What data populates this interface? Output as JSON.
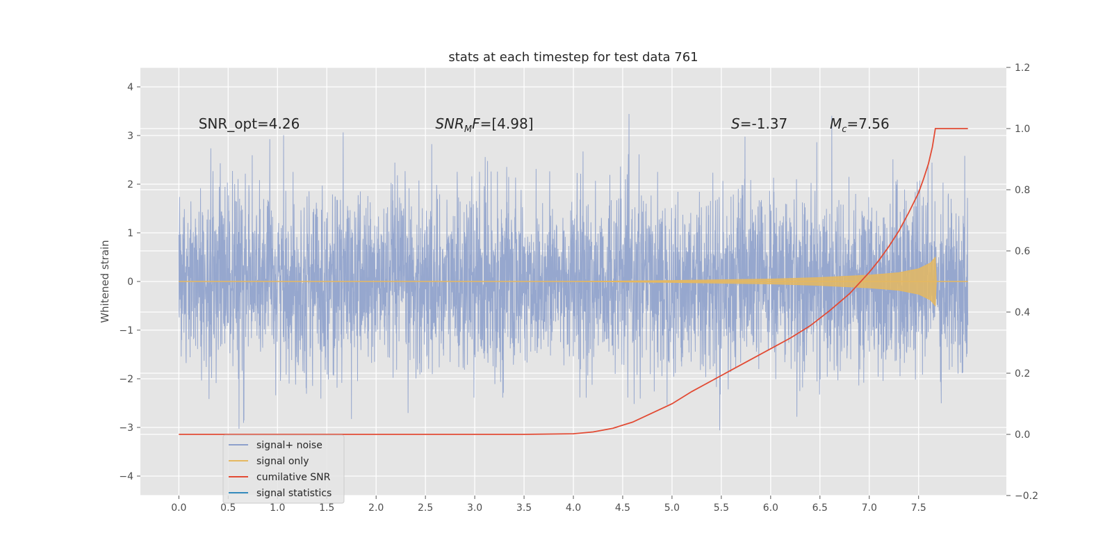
{
  "chart_data": {
    "type": "line",
    "title": "stats at each timestep for test data 761",
    "ylabel": "Whitened strain",
    "xlim": [
      -0.39,
      8.39
    ],
    "ylim": [
      -4.4,
      4.4
    ],
    "y2lim": [
      -0.2,
      1.2
    ],
    "x_ticks": [
      "0.0",
      "0.5",
      "1.0",
      "1.5",
      "2.0",
      "2.5",
      "3.0",
      "3.5",
      "4.0",
      "4.5",
      "5.0",
      "5.5",
      "6.0",
      "6.5",
      "7.0",
      "7.5"
    ],
    "y_ticks": [
      "−4",
      "−3",
      "−2",
      "−1",
      "0",
      "1",
      "2",
      "3",
      "4"
    ],
    "y2_ticks": [
      "−0.2",
      "0.0",
      "0.2",
      "0.4",
      "0.6",
      "0.8",
      "1.0",
      "1.2"
    ],
    "grid": true,
    "legend_position": "lower-left",
    "annotations": [
      {
        "text": "SNR_opt=4.26",
        "x": 0.2,
        "y": 3.2
      },
      {
        "text": "SNR",
        "sub": "M",
        "tail": "F=[4.98]",
        "italic": true,
        "x": 2.6,
        "y": 3.2
      },
      {
        "text": "S",
        "tail": "=-1.37",
        "italic": true,
        "x": 5.6,
        "y": 3.2
      },
      {
        "text": "M",
        "sub": "c",
        "tail": "=7.56",
        "italic": true,
        "x": 6.6,
        "y": 3.2
      }
    ],
    "series": [
      {
        "name": "signal+ noise",
        "color": "#8da0cb",
        "axis": "left",
        "description_values": {
          "x_range": [
            0.0,
            8.0
          ],
          "mean": 0.0,
          "std": 1.0
        }
      },
      {
        "name": "signal only",
        "color": "#e5b860",
        "axis": "left",
        "envelope": {
          "x": [
            0.0,
            4.0,
            5.0,
            6.0,
            6.5,
            7.0,
            7.3,
            7.5,
            7.62,
            7.67,
            7.68,
            8.0
          ],
          "y": [
            0.0,
            0.0,
            0.02,
            0.05,
            0.08,
            0.13,
            0.18,
            0.26,
            0.38,
            0.5,
            0.0,
            0.0
          ]
        }
      },
      {
        "name": "cumilative SNR",
        "color": "#e24a33",
        "axis": "right",
        "x": [
          0.0,
          3.5,
          4.0,
          4.2,
          4.4,
          4.6,
          4.8,
          5.0,
          5.2,
          5.4,
          5.6,
          5.8,
          6.0,
          6.2,
          6.4,
          6.6,
          6.8,
          7.0,
          7.1,
          7.2,
          7.3,
          7.4,
          7.5,
          7.55,
          7.6,
          7.64,
          7.67,
          8.0
        ],
        "y": [
          0.0,
          0.0,
          0.002,
          0.008,
          0.02,
          0.04,
          0.07,
          0.1,
          0.14,
          0.175,
          0.21,
          0.245,
          0.28,
          0.315,
          0.355,
          0.405,
          0.46,
          0.53,
          0.57,
          0.615,
          0.665,
          0.725,
          0.79,
          0.835,
          0.885,
          0.94,
          1.0,
          1.0
        ]
      },
      {
        "name": "signal statistics",
        "color": "#348abd",
        "axis": "left",
        "hidden_in_plot": true
      }
    ]
  },
  "legend": {
    "items": [
      {
        "label": "signal+ noise",
        "color": "#8da0cb"
      },
      {
        "label": "signal only",
        "color": "#e5b860"
      },
      {
        "label": "cumilative SNR",
        "color": "#e24a33"
      },
      {
        "label": "signal statistics",
        "color": "#348abd"
      }
    ]
  }
}
